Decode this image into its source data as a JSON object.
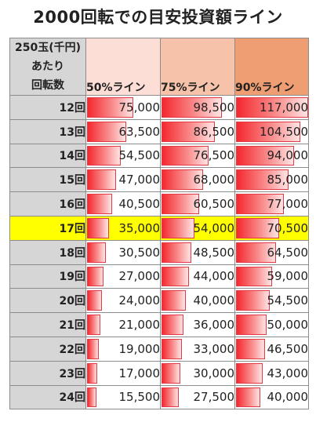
{
  "title": "2000回転での目安投資額ライン",
  "header": {
    "corner_line1": "250玉(千円)",
    "corner_line2": "あたり",
    "corner_line3": "回転数",
    "col_50": "50%ライン",
    "col_75": "75%ライン",
    "col_90": "90%ライン"
  },
  "colors": {
    "header_50": "#fcded6",
    "header_75": "#f6c3aa",
    "header_90": "#ef9d72",
    "row_header_bg": "#d6d6d6",
    "highlight": "#ffff00",
    "bar": "#f4282f"
  },
  "bar_scale_max": 117000,
  "rows": [
    {
      "label": "12回",
      "v50": "75,000",
      "v75": "98,500",
      "v90": "117,000",
      "n50": 75000,
      "n75": 98500,
      "n90": 117000,
      "highlight": false
    },
    {
      "label": "13回",
      "v50": "63,500",
      "v75": "86,500",
      "v90": "104,500",
      "n50": 63500,
      "n75": 86500,
      "n90": 104500,
      "highlight": false
    },
    {
      "label": "14回",
      "v50": "54,500",
      "v75": "76,500",
      "v90": "94,000",
      "n50": 54500,
      "n75": 76500,
      "n90": 94000,
      "highlight": false
    },
    {
      "label": "15回",
      "v50": "47,000",
      "v75": "68,000",
      "v90": "85,000",
      "n50": 47000,
      "n75": 68000,
      "n90": 85000,
      "highlight": false
    },
    {
      "label": "16回",
      "v50": "40,500",
      "v75": "60,500",
      "v90": "77,000",
      "n50": 40500,
      "n75": 60500,
      "n90": 77000,
      "highlight": false
    },
    {
      "label": "17回",
      "v50": "35,000",
      "v75": "54,000",
      "v90": "70,500",
      "n50": 35000,
      "n75": 54000,
      "n90": 70500,
      "highlight": true
    },
    {
      "label": "18回",
      "v50": "30,500",
      "v75": "48,500",
      "v90": "64,500",
      "n50": 30500,
      "n75": 48500,
      "n90": 64500,
      "highlight": false
    },
    {
      "label": "19回",
      "v50": "27,000",
      "v75": "44,000",
      "v90": "59,000",
      "n50": 27000,
      "n75": 44000,
      "n90": 59000,
      "highlight": false
    },
    {
      "label": "20回",
      "v50": "24,000",
      "v75": "40,000",
      "v90": "54,500",
      "n50": 24000,
      "n75": 40000,
      "n90": 54500,
      "highlight": false
    },
    {
      "label": "21回",
      "v50": "21,000",
      "v75": "36,000",
      "v90": "50,000",
      "n50": 21000,
      "n75": 36000,
      "n90": 50000,
      "highlight": false
    },
    {
      "label": "22回",
      "v50": "19,000",
      "v75": "33,000",
      "v90": "46,500",
      "n50": 19000,
      "n75": 33000,
      "n90": 46500,
      "highlight": false
    },
    {
      "label": "23回",
      "v50": "17,000",
      "v75": "30,000",
      "v90": "43,000",
      "n50": 17000,
      "n75": 30000,
      "n90": 43000,
      "highlight": false
    },
    {
      "label": "24回",
      "v50": "15,500",
      "v75": "27,500",
      "v90": "40,000",
      "n50": 15500,
      "n75": 27500,
      "n90": 40000,
      "highlight": false
    }
  ]
}
